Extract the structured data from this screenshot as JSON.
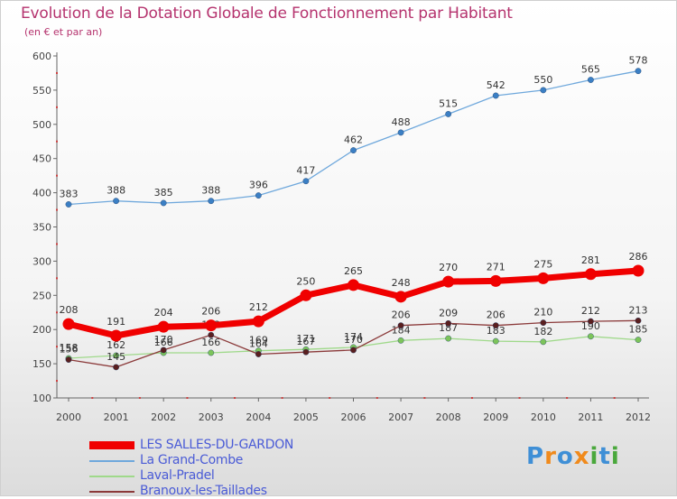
{
  "header": {
    "title": "Evolution de la Dotation Globale de Fonctionnement par Habitant",
    "subtitle": "(en € et par an)"
  },
  "logo": {
    "text": "Proxiti",
    "letters": [
      "P",
      "r",
      "o",
      "x",
      "i",
      "t",
      "i"
    ],
    "colors": [
      "#3f8fd6",
      "#f08a1c",
      "#3f8fd6",
      "#f08a1c",
      "#4aa83c",
      "#3f8fd6",
      "#4aa83c"
    ]
  },
  "chart_data": {
    "type": "line",
    "title": "Evolution de la Dotation Globale de Fonctionnement par Habitant",
    "subtitle": "(en € et par an)",
    "xlabel": "",
    "ylabel": "",
    "ylim": [
      100,
      600
    ],
    "yticks": [
      "100",
      "150",
      "200",
      "250",
      "300",
      "350",
      "400",
      "450",
      "500",
      "550",
      "600"
    ],
    "categories": [
      "2000",
      "2001",
      "2002",
      "2003",
      "2004",
      "2005",
      "2006",
      "2007",
      "2008",
      "2009",
      "2010",
      "2011",
      "2012"
    ],
    "grid": false,
    "legend": "bottom-left",
    "series": [
      {
        "name": "La Grand-Combe",
        "color": "#6fa8dc",
        "marker": "#3b7fc4",
        "weight": "thin",
        "values": [
          383,
          388,
          385,
          388,
          396,
          417,
          462,
          488,
          515,
          542,
          550,
          565,
          578
        ],
        "labels": [
          "383",
          "388",
          "385",
          "388",
          "396",
          "417",
          "462",
          "488",
          "515",
          "542",
          "550",
          "565",
          "578"
        ]
      },
      {
        "name": "Laval-Pradel",
        "color": "#9fd98a",
        "marker": "#7cc45a",
        "weight": "thin",
        "values": [
          158,
          162,
          166,
          166,
          169,
          171,
          174,
          184,
          187,
          183,
          182,
          190,
          185
        ],
        "labels": [
          "158",
          "162",
          "166",
          "166",
          "169",
          "171",
          "174",
          "184",
          "187",
          "183",
          "182",
          "190",
          "185"
        ]
      },
      {
        "name": "Branoux-les-Taillades",
        "color": "#8b3a3a",
        "marker": "#5a1f1f",
        "weight": "thin",
        "values": [
          156,
          145,
          170,
          192,
          164,
          167,
          170,
          206,
          209,
          206,
          210,
          212,
          213
        ],
        "labels": [
          "156",
          "145",
          "170",
          "192",
          "164",
          "167",
          "170",
          "206",
          "209",
          "206",
          "210",
          "212",
          "213"
        ]
      },
      {
        "name": "LES SALLES-DU-GARDON",
        "color": "#f00000",
        "marker": "#f00000",
        "weight": "thick",
        "values": [
          208,
          191,
          204,
          206,
          212,
          250,
          265,
          248,
          270,
          271,
          275,
          281,
          286
        ],
        "labels": [
          "208",
          "191",
          "204",
          "206",
          "212",
          "250",
          "265",
          "248",
          "270",
          "271",
          "275",
          "281",
          "286"
        ]
      }
    ],
    "legend_order": [
      "LES SALLES-DU-GARDON",
      "La Grand-Combe",
      "Laval-Pradel",
      "Branoux-les-Taillades"
    ]
  }
}
